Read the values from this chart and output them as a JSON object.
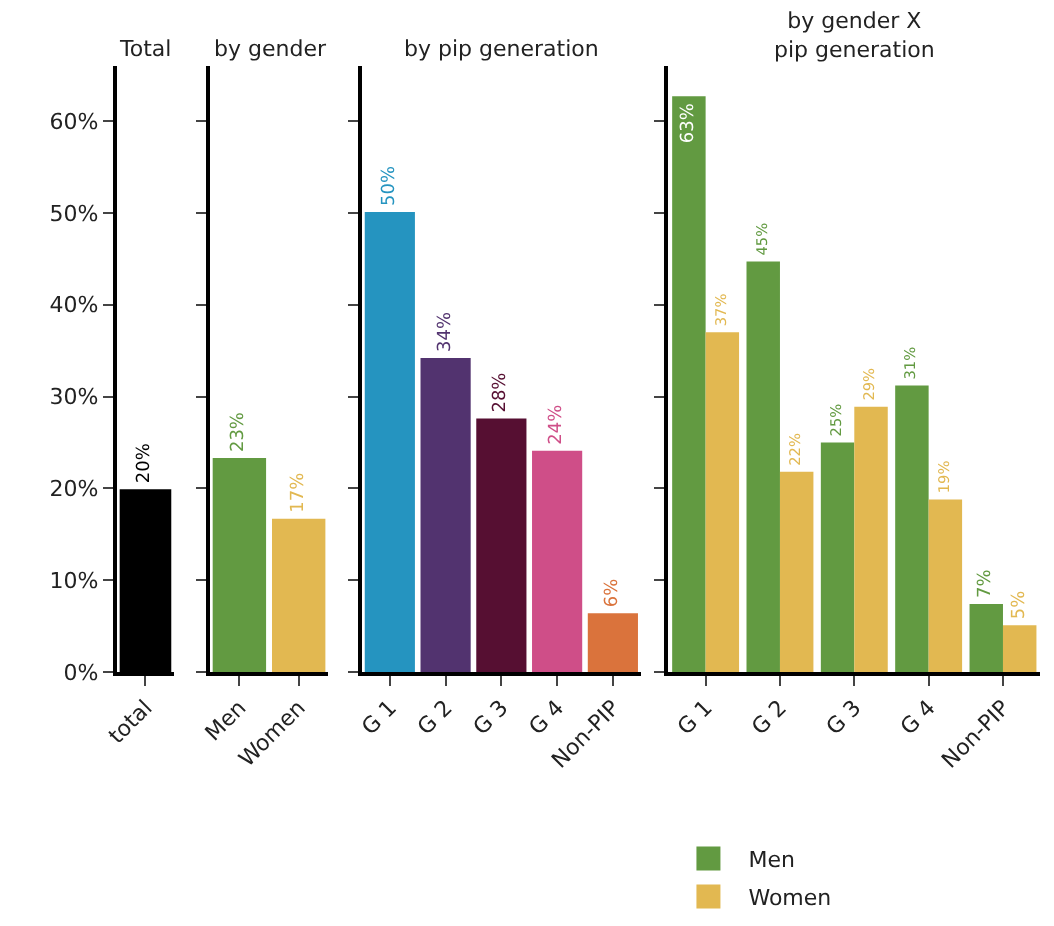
{
  "chart_data": [
    {
      "type": "bar",
      "title": "Total",
      "categories": [
        "total"
      ],
      "values": [
        19.9
      ],
      "colors": [
        "#000000"
      ],
      "value_labels": [
        "20%"
      ],
      "ylim": [
        0,
        66
      ],
      "yticks": [
        {
          "value": 0,
          "label": "0%"
        },
        {
          "value": 10,
          "label": "10%"
        },
        {
          "value": 20,
          "label": "20%"
        },
        {
          "value": 30,
          "label": "30%"
        },
        {
          "value": 40,
          "label": "40%"
        },
        {
          "value": 50,
          "label": "50%"
        },
        {
          "value": 60,
          "label": "60%"
        }
      ]
    },
    {
      "type": "bar",
      "title": "by gender",
      "categories": [
        "Men",
        "Women"
      ],
      "values": [
        23.3,
        16.7
      ],
      "colors": [
        "#629a41",
        "#e2b851"
      ],
      "value_labels": [
        "23%",
        "17%"
      ],
      "ylim": [
        0,
        66
      ],
      "yticks": [
        {
          "value": 0,
          "label": null
        },
        {
          "value": 10,
          "label": null
        },
        {
          "value": 20,
          "label": null
        },
        {
          "value": 30,
          "label": null
        },
        {
          "value": 40,
          "label": null
        },
        {
          "value": 50,
          "label": null
        },
        {
          "value": 60,
          "label": null
        }
      ],
      "tick_labels": "x"
    },
    {
      "type": "bar",
      "title": "by pip generation",
      "categories": [
        "G 1",
        "G 2",
        "G 3",
        "G 4",
        "Non-PIP"
      ],
      "values": [
        50.1,
        34.2,
        27.6,
        24.1,
        6.4
      ],
      "colors": [
        "#2594c0",
        "#52336f",
        "#560f32",
        "#cf4e88",
        "#da733c"
      ],
      "value_labels": [
        "50%",
        "34%",
        "28%",
        "24%",
        "6%"
      ],
      "ylim": [
        0,
        66
      ],
      "yticks": [
        {
          "value": 0,
          "label": null
        },
        {
          "value": 10,
          "label": null
        },
        {
          "value": 20,
          "label": null
        },
        {
          "value": 30,
          "label": null
        },
        {
          "value": 40,
          "label": null
        },
        {
          "value": 50,
          "label": null
        },
        {
          "value": 60,
          "label": null
        }
      ],
      "tick_labels": "x"
    },
    {
      "type": "bar",
      "title": "by gender X\npip generation",
      "categories": [
        "G 1",
        "G 2",
        "G 3",
        "G 4",
        "Non-PIP"
      ],
      "series": [
        {
          "name": "Men",
          "color": "#629a41",
          "values": [
            62.7,
            44.7,
            25.0,
            31.2,
            7.4
          ],
          "value_labels": [
            "63%",
            "45%",
            "25%",
            "31%",
            "7%"
          ]
        },
        {
          "name": "Women",
          "color": "#e2b851",
          "values": [
            37.0,
            21.8,
            28.9,
            18.8,
            5.1
          ],
          "value_labels": [
            "37%",
            "22%",
            "29%",
            "19%",
            "5%"
          ]
        }
      ],
      "ylim": [
        0,
        66
      ],
      "yticks": [
        {
          "value": 0,
          "label": null
        },
        {
          "value": 10,
          "label": null
        },
        {
          "value": 20,
          "label": null
        },
        {
          "value": 30,
          "label": null
        },
        {
          "value": 40,
          "label": null
        },
        {
          "value": 50,
          "label": null
        },
        {
          "value": 60,
          "label": null
        }
      ],
      "tick_labels": "x",
      "legend": "bottom"
    }
  ]
}
